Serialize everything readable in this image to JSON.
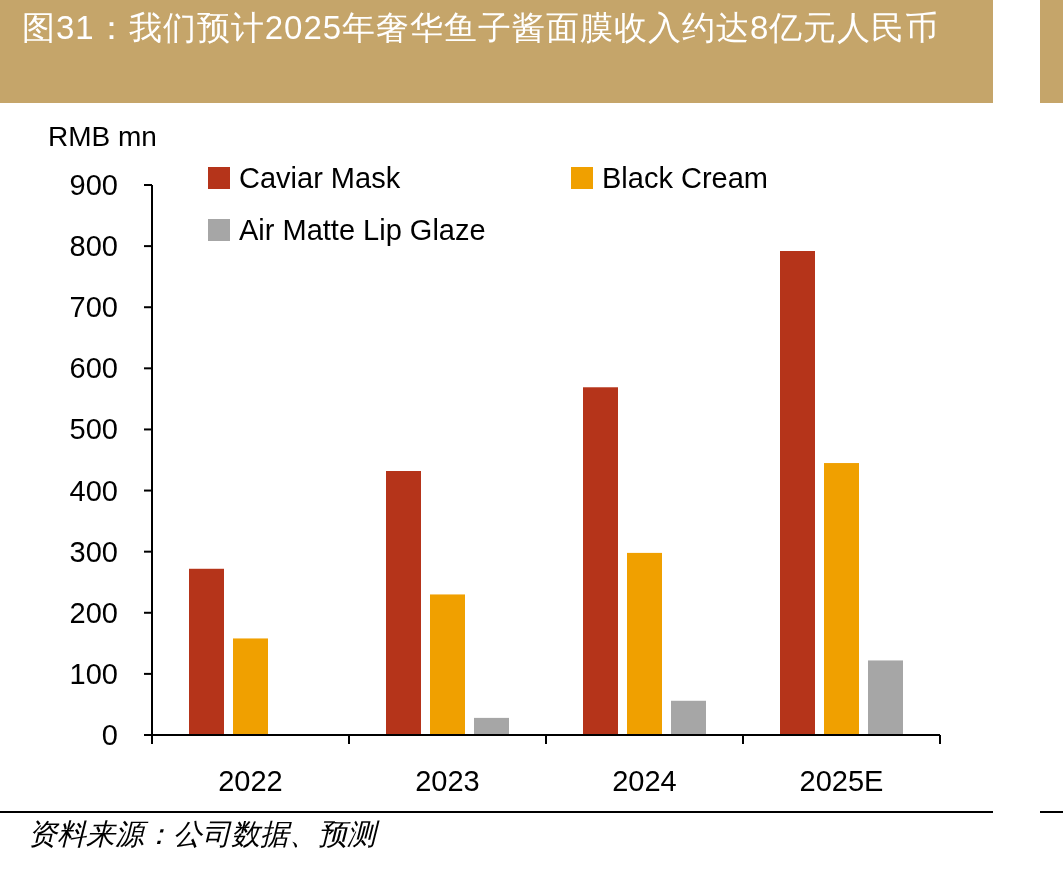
{
  "chart_data": {
    "type": "bar",
    "title": "图31：我们预计2025年奢华鱼子酱面膜收入约达8亿元人民币",
    "ylabel": "RMB mn",
    "categories": [
      "2022",
      "2023",
      "2024",
      "2025E"
    ],
    "series": [
      {
        "name": "Caviar Mask",
        "color": "#b5341a",
        "values": [
          272,
          432,
          569,
          792
        ]
      },
      {
        "name": "Black Cream",
        "color": "#f0a000",
        "values": [
          158,
          230,
          298,
          445
        ]
      },
      {
        "name": "Air Matte Lip Glaze",
        "color": "#a6a6a6",
        "values": [
          null,
          28,
          56,
          122
        ]
      }
    ],
    "ylim": [
      0,
      900
    ],
    "yticks": [
      0,
      100,
      200,
      300,
      400,
      500,
      600,
      700,
      800,
      900
    ],
    "grid": false,
    "legend": "top",
    "annotations": [
      "资料来源：公司数据、预测"
    ]
  }
}
